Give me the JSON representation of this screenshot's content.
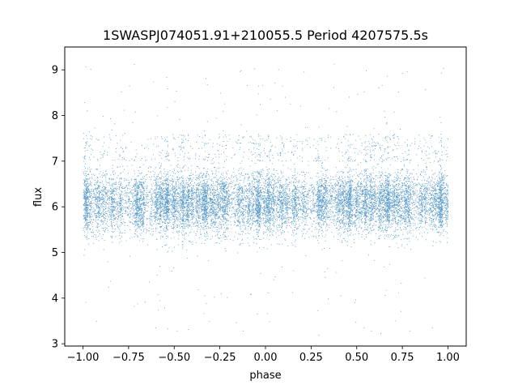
{
  "chart_data": {
    "type": "scatter",
    "title": "1SWASPJ074051.91+210055.5 Period 4207575.5s",
    "xlabel": "phase",
    "ylabel": "flux",
    "xlim": [
      -1.1,
      1.1
    ],
    "ylim": [
      2.95,
      9.5
    ],
    "xticks": [
      -1.0,
      -0.75,
      -0.5,
      -0.25,
      0.0,
      0.25,
      0.5,
      0.75,
      1.0
    ],
    "xtick_labels": [
      "−1.00",
      "−0.75",
      "−0.50",
      "−0.25",
      "0.00",
      "0.25",
      "0.50",
      "0.75",
      "1.00"
    ],
    "yticks": [
      3,
      4,
      5,
      6,
      7,
      8,
      9
    ],
    "ytick_labels": [
      "3",
      "4",
      "5",
      "6",
      "7",
      "8",
      "9"
    ],
    "grid": false,
    "series": [
      {
        "color": "#1f77b4",
        "marker": "point",
        "x_range": [
          -1.0,
          1.0
        ],
        "baseline_flux": 6.1,
        "typical_spread": [
          5.3,
          7.0
        ],
        "outlier_range": [
          3.2,
          9.2
        ],
        "symmetric_about_phase_zero_shift": 1.0,
        "approx_point_count": 14000
      }
    ]
  }
}
